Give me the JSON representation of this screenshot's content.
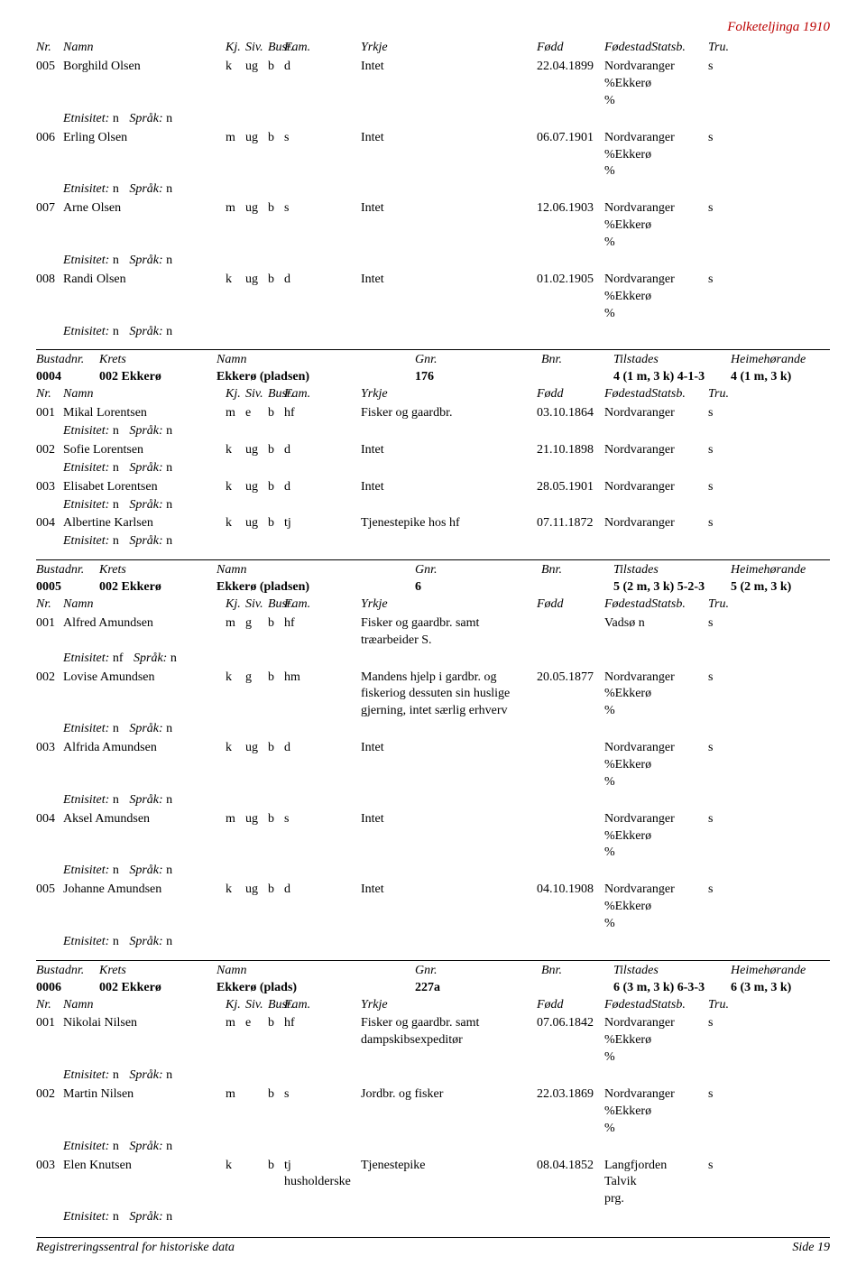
{
  "page_header": "Folketeljinga 1910",
  "col_labels": {
    "nr": "Nr.",
    "namn": "Namn",
    "kj": "Kj.",
    "siv": "Siv.",
    "bust": "Bust.",
    "fam": "Fam.",
    "yrkje": "Yrkje",
    "fodd": "Fødd",
    "fodestad": "Fødestad",
    "statsb": "Statsb.",
    "tru": "Tru."
  },
  "etn_label": "Etnisitet:",
  "sprak_label": "Språk:",
  "section1": {
    "rows": [
      {
        "nr": "005",
        "namn": "Borghild Olsen",
        "kj": "k",
        "siv": "ug",
        "bust": "b",
        "fam": "d",
        "yrkje": "Intet",
        "fodd": "22.04.1899",
        "fodestad": "Nordvaranger\n%Ekkerø\n%",
        "tru": "s",
        "etn": "n",
        "sprak": "n"
      },
      {
        "nr": "006",
        "namn": "Erling Olsen",
        "kj": "m",
        "siv": "ug",
        "bust": "b",
        "fam": "s",
        "yrkje": "Intet",
        "fodd": "06.07.1901",
        "fodestad": "Nordvaranger\n%Ekkerø\n%",
        "tru": "s",
        "etn": "n",
        "sprak": "n"
      },
      {
        "nr": "007",
        "namn": "Arne Olsen",
        "kj": "m",
        "siv": "ug",
        "bust": "b",
        "fam": "s",
        "yrkje": "Intet",
        "fodd": "12.06.1903",
        "fodestad": "Nordvaranger\n%Ekkerø\n%",
        "tru": "s",
        "etn": "n",
        "sprak": "n"
      },
      {
        "nr": "008",
        "namn": "Randi Olsen",
        "kj": "k",
        "siv": "ug",
        "bust": "b",
        "fam": "d",
        "yrkje": "Intet",
        "fodd": "01.02.1905",
        "fodestad": "Nordvaranger\n%Ekkerø\n%",
        "tru": "s",
        "etn": "n",
        "sprak": "n"
      }
    ]
  },
  "bust_labels": {
    "nr": "Bustadnr.",
    "krets": "Krets",
    "namn": "Namn",
    "gnr": "Gnr.",
    "bnr": "Bnr.",
    "til": "Tilstades",
    "heim": "Heimehørande"
  },
  "bust1": {
    "nr": "0004",
    "krets": "002 Ekkerø",
    "namn": "Ekkerø (pladsen)",
    "gnr": "176",
    "bnr": "",
    "til": "4 (1 m, 3 k) 4-1-3",
    "heim": "4 (1 m, 3 k)"
  },
  "section2": {
    "rows": [
      {
        "nr": "001",
        "namn": "Mikal Lorentsen",
        "kj": "m",
        "siv": "e",
        "bust": "b",
        "fam": "hf",
        "yrkje": "Fisker og gaardbr.",
        "fodd": "03.10.1864",
        "fodestad": "Nordvaranger",
        "tru": "s",
        "etn": "n",
        "sprak": "n"
      },
      {
        "nr": "002",
        "namn": "Sofie Lorentsen",
        "kj": "k",
        "siv": "ug",
        "bust": "b",
        "fam": "d",
        "yrkje": "Intet",
        "fodd": "21.10.1898",
        "fodestad": "Nordvaranger",
        "tru": "s",
        "etn": "n",
        "sprak": "n"
      },
      {
        "nr": "003",
        "namn": "Elisabet Lorentsen",
        "kj": "k",
        "siv": "ug",
        "bust": "b",
        "fam": "d",
        "yrkje": "Intet",
        "fodd": "28.05.1901",
        "fodestad": "Nordvaranger",
        "tru": "s",
        "etn": "n",
        "sprak": "n"
      },
      {
        "nr": "004",
        "namn": "Albertine Karlsen",
        "kj": "k",
        "siv": "ug",
        "bust": "b",
        "fam": "tj",
        "yrkje": "Tjenestepike hos hf",
        "fodd": "07.11.1872",
        "fodestad": "Nordvaranger",
        "tru": "s",
        "etn": "n",
        "sprak": "n"
      }
    ]
  },
  "bust2": {
    "nr": "0005",
    "krets": "002 Ekkerø",
    "namn": "Ekkerø (pladsen)",
    "gnr": "6",
    "bnr": "",
    "til": "5 (2 m, 3 k) 5-2-3",
    "heim": "5 (2 m, 3 k)"
  },
  "section3": {
    "rows": [
      {
        "nr": "001",
        "namn": "Alfred Amundsen",
        "kj": "m",
        "siv": "g",
        "bust": "b",
        "fam": "hf",
        "yrkje": "Fisker og gaardbr. samt træarbeider S.",
        "fodd": "",
        "fodestad": "Vadsø",
        "statsb": "n",
        "tru": "s",
        "etn": "nf",
        "sprak": "n"
      },
      {
        "nr": "002",
        "namn": "Lovise Amundsen",
        "kj": "k",
        "siv": "g",
        "bust": "b",
        "fam": "hm",
        "yrkje": "Mandens hjelp i gardbr. og fiskeriog dessuten sin huslige gjerning, intet særlig erhverv",
        "fodd": "20.05.1877",
        "fodestad": "Nordvaranger\n%Ekkerø\n%",
        "tru": "s",
        "etn": "n",
        "sprak": "n"
      },
      {
        "nr": "003",
        "namn": "Alfrida Amundsen",
        "kj": "k",
        "siv": "ug",
        "bust": "b",
        "fam": "d",
        "yrkje": "Intet",
        "fodd": "",
        "fodestad": "Nordvaranger\n%Ekkerø\n%",
        "tru": "s",
        "etn": "n",
        "sprak": "n"
      },
      {
        "nr": "004",
        "namn": "Aksel Amundsen",
        "kj": "m",
        "siv": "ug",
        "bust": "b",
        "fam": "s",
        "yrkje": "Intet",
        "fodd": "",
        "fodestad": "Nordvaranger\n%Ekkerø\n%",
        "tru": "s",
        "etn": "n",
        "sprak": "n"
      },
      {
        "nr": "005",
        "namn": "Johanne Amundsen",
        "kj": "k",
        "siv": "ug",
        "bust": "b",
        "fam": "d",
        "yrkje": "Intet",
        "fodd": "04.10.1908",
        "fodestad": "Nordvaranger\n%Ekkerø\n%",
        "tru": "s",
        "etn": "n",
        "sprak": "n"
      }
    ]
  },
  "bust3": {
    "nr": "0006",
    "krets": "002 Ekkerø",
    "namn": "Ekkerø (plads)",
    "gnr": "227a",
    "bnr": "",
    "til": "6 (3 m, 3 k) 6-3-3",
    "heim": "6 (3 m, 3 k)"
  },
  "section4": {
    "rows": [
      {
        "nr": "001",
        "namn": "Nikolai Nilsen",
        "kj": "m",
        "siv": "e",
        "bust": "b",
        "fam": "hf",
        "yrkje": "Fisker og gaardbr. samt dampskibsexpeditør",
        "fodd": "07.06.1842",
        "fodestad": "Nordvaranger\n%Ekkerø\n%",
        "tru": "s",
        "etn": "n",
        "sprak": "n"
      },
      {
        "nr": "002",
        "namn": "Martin Nilsen",
        "kj": "m",
        "siv": "",
        "bust": "b",
        "fam": "s",
        "yrkje": "Jordbr. og fisker",
        "fodd": "22.03.1869",
        "fodestad": "Nordvaranger\n%Ekkerø\n%",
        "tru": "s",
        "etn": "n",
        "sprak": "n"
      },
      {
        "nr": "003",
        "namn": "Elen Knutsen",
        "kj": "k",
        "siv": "",
        "bust": "b",
        "fam": "tj husholderske",
        "yrkje": "Tjenestepike",
        "fodd": "08.04.1852",
        "fodestad": "Langfjorden\nTalvik\nprg.",
        "tru": "s",
        "etn": "n",
        "sprak": "n"
      }
    ]
  },
  "footer_left": "Registreringssentral for historiske data",
  "footer_right": "Side 19"
}
